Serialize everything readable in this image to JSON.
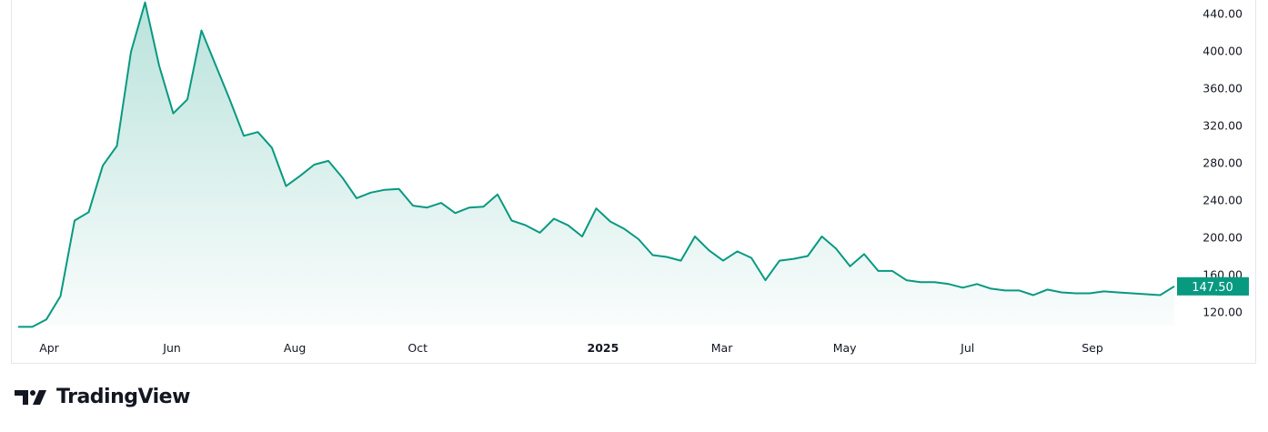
{
  "brand": {
    "name": "TradingView"
  },
  "chart_data": {
    "type": "area",
    "title": "",
    "xlabel": "",
    "ylabel": "",
    "ylim": [
      104,
      452
    ],
    "grid": false,
    "line_color": "#089981",
    "y_ticks": [
      "120.00",
      "160.00",
      "200.00",
      "240.00",
      "280.00",
      "320.00",
      "360.00",
      "400.00",
      "440.00"
    ],
    "x_ticks": [
      {
        "label": "Apr",
        "date": "2024-04-01",
        "bold": false
      },
      {
        "label": "Jun",
        "date": "2024-06-01",
        "bold": false
      },
      {
        "label": "Aug",
        "date": "2024-08-01",
        "bold": false
      },
      {
        "label": "Oct",
        "date": "2024-10-01",
        "bold": false
      },
      {
        "label": "2025",
        "date": "2025-01-01",
        "bold": true
      },
      {
        "label": "Mar",
        "date": "2025-03-01",
        "bold": false
      },
      {
        "label": "May",
        "date": "2025-05-01",
        "bold": false
      },
      {
        "label": "Jul",
        "date": "2025-07-01",
        "bold": false
      },
      {
        "label": "Sep",
        "date": "2025-09-01",
        "bold": false
      }
    ],
    "last_price_label": "147.50",
    "x": [
      "2024-03-18",
      "2024-03-25",
      "2024-04-01",
      "2024-04-08",
      "2024-04-15",
      "2024-04-22",
      "2024-04-29",
      "2024-05-06",
      "2024-05-13",
      "2024-05-20",
      "2024-05-27",
      "2024-06-03",
      "2024-06-10",
      "2024-06-17",
      "2024-06-24",
      "2024-07-01",
      "2024-07-08",
      "2024-07-15",
      "2024-07-22",
      "2024-07-29",
      "2024-08-05",
      "2024-08-12",
      "2024-08-19",
      "2024-08-26",
      "2024-09-02",
      "2024-09-09",
      "2024-09-16",
      "2024-09-23",
      "2024-09-30",
      "2024-10-07",
      "2024-10-14",
      "2024-10-21",
      "2024-10-28",
      "2024-11-04",
      "2024-11-11",
      "2024-11-18",
      "2024-11-25",
      "2024-12-02",
      "2024-12-09",
      "2024-12-16",
      "2024-12-23",
      "2024-12-30",
      "2025-01-06",
      "2025-01-13",
      "2025-01-20",
      "2025-01-27",
      "2025-02-03",
      "2025-02-10",
      "2025-02-17",
      "2025-02-24",
      "2025-03-03",
      "2025-03-10",
      "2025-03-17",
      "2025-03-24",
      "2025-03-31",
      "2025-04-07",
      "2025-04-14",
      "2025-04-21",
      "2025-04-28",
      "2025-05-05",
      "2025-05-12",
      "2025-05-19",
      "2025-05-26",
      "2025-06-02",
      "2025-06-09",
      "2025-06-16",
      "2025-06-23",
      "2025-06-30",
      "2025-07-07",
      "2025-07-14",
      "2025-07-21",
      "2025-07-28",
      "2025-08-04",
      "2025-08-11",
      "2025-08-18",
      "2025-08-25",
      "2025-09-01",
      "2025-09-08",
      "2025-09-15",
      "2025-09-22",
      "2025-09-29",
      "2025-10-06",
      "2025-10-13"
    ],
    "values": [
      104,
      104,
      112,
      137,
      218,
      227,
      277,
      298,
      399,
      452,
      384,
      333,
      348,
      422,
      385,
      348,
      309,
      313,
      296,
      255,
      266,
      278,
      282,
      264,
      242,
      248,
      251,
      252,
      234,
      232,
      237,
      226,
      232,
      233,
      246,
      218,
      213,
      205,
      220,
      213,
      201,
      231,
      217,
      209,
      198,
      181,
      179,
      175,
      201,
      186,
      175,
      185,
      178,
      154,
      175,
      177,
      180,
      201,
      188,
      169,
      182,
      164,
      164,
      154,
      152,
      152,
      150,
      146,
      150,
      145,
      143,
      143,
      138,
      144,
      141,
      140,
      140,
      142,
      141,
      140,
      139,
      138,
      147.5
    ]
  }
}
